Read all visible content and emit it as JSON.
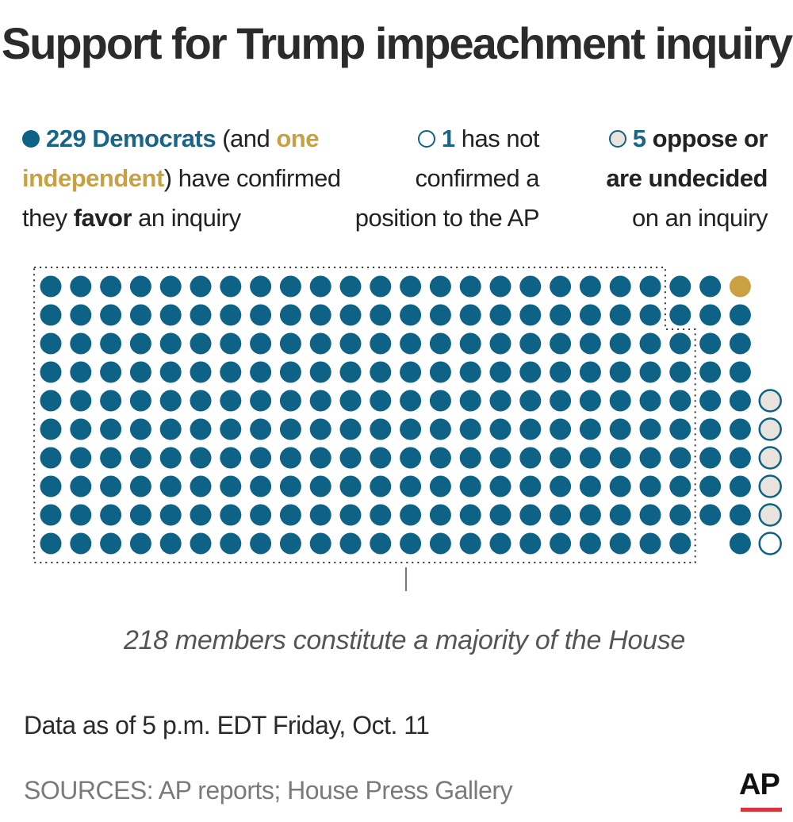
{
  "title": "Support for Trump impeachment inquiry",
  "legend": {
    "dem_count": "229 Democrats",
    "and_open": "(and",
    "one": "one",
    "independent": "independent",
    "close_text": ") have confirmed",
    "they": "they",
    "favor": "favor",
    "an_inquiry": "an inquiry",
    "not_confirmed_count": "1",
    "not_confirmed_text": "has not",
    "not_confirmed_line2": "confirmed a",
    "not_confirmed_line3": "position to the AP",
    "oppose_count": "5",
    "oppose_text": "oppose or",
    "undecided_text": "are undecided",
    "undecided_line3": "on an inquiry"
  },
  "colors": {
    "democrat": "#0e6285",
    "independent": "#c9a042",
    "not_confirmed": "#ffffff",
    "oppose_undecided": "#e8e4dd",
    "majority_outline": "#333333"
  },
  "chart_data": {
    "type": "waffle",
    "title": "Support for Trump impeachment inquiry",
    "categories": [
      "Democrats favor",
      "Independent favors",
      "Has not confirmed",
      "Oppose or undecided"
    ],
    "values": [
      229,
      1,
      1,
      5
    ],
    "grid": {
      "rows": 10,
      "columns": 24
    },
    "majority_threshold": 218,
    "annotation": "218 members constitute a majority of the House"
  },
  "footer": {
    "data_as_of": "Data as of 5 p.m. EDT Friday, Oct. 11",
    "sources": "SOURCES: AP reports; House Press Gallery",
    "logo": "AP"
  }
}
